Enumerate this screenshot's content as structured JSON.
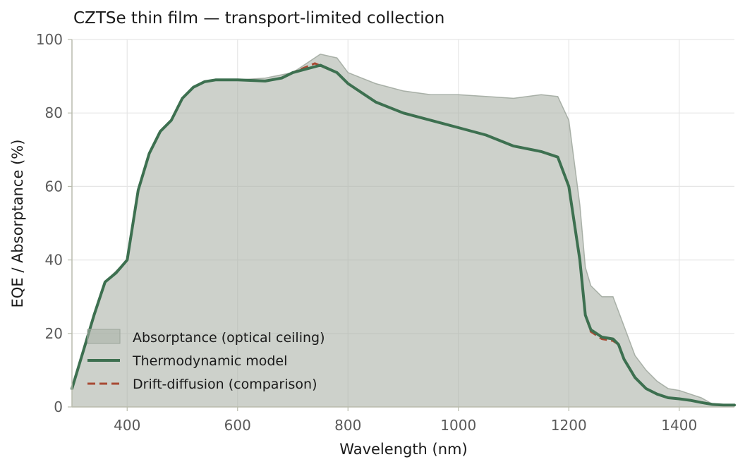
{
  "chart_data": {
    "type": "line",
    "title": "CZTSe thin film — transport-limited collection",
    "xlabel": "Wavelength (nm)",
    "ylabel": "EQE / Absorptance (%)",
    "xlim": [
      300,
      1500
    ],
    "ylim": [
      0,
      100
    ],
    "xticks": [
      400,
      600,
      800,
      1000,
      1200,
      1400
    ],
    "yticks": [
      0,
      20,
      40,
      60,
      80,
      100
    ],
    "grid": true,
    "legend_position": "lower-left",
    "series": [
      {
        "name": "Absorptance (optical ceiling)",
        "style": "area",
        "color": "#a8b0a6",
        "x": [
          300,
          320,
          340,
          360,
          380,
          400,
          420,
          440,
          460,
          480,
          500,
          520,
          540,
          560,
          580,
          600,
          650,
          700,
          750,
          780,
          800,
          850,
          900,
          950,
          1000,
          1050,
          1100,
          1150,
          1180,
          1200,
          1220,
          1230,
          1240,
          1260,
          1280,
          1300,
          1320,
          1340,
          1360,
          1380,
          1400,
          1420,
          1440,
          1460,
          1480,
          1500
        ],
        "values": [
          5,
          15,
          25,
          34,
          37,
          40,
          59,
          69,
          75,
          78,
          84,
          87,
          88.5,
          89,
          89,
          89,
          89.5,
          91,
          96,
          95,
          91,
          88,
          86,
          85,
          85,
          84.5,
          84,
          85,
          84.5,
          78,
          55,
          38,
          33,
          30,
          30,
          22,
          14,
          10,
          7,
          5,
          4.5,
          3.5,
          2.5,
          0.8,
          0.5,
          0.5
        ]
      },
      {
        "name": "Thermodynamic model",
        "style": "line",
        "color": "#3d7050",
        "x": [
          300,
          320,
          340,
          360,
          380,
          400,
          420,
          440,
          460,
          480,
          500,
          520,
          540,
          560,
          580,
          600,
          650,
          680,
          700,
          750,
          780,
          800,
          850,
          900,
          950,
          1000,
          1050,
          1100,
          1150,
          1180,
          1200,
          1220,
          1230,
          1240,
          1260,
          1280,
          1290,
          1300,
          1320,
          1340,
          1360,
          1380,
          1400,
          1420,
          1440,
          1460,
          1480,
          1500
        ],
        "values": [
          5,
          15,
          25,
          34,
          36.5,
          40,
          59,
          69,
          75,
          78,
          84,
          87,
          88.5,
          89,
          89,
          89,
          88.7,
          89.5,
          91,
          93,
          91,
          88,
          83,
          80,
          78,
          76,
          74,
          71,
          69.5,
          68,
          60,
          40,
          25,
          21,
          19,
          18.5,
          17,
          13,
          8,
          5,
          3.5,
          2.5,
          2.2,
          1.8,
          1.2,
          0.7,
          0.5,
          0.5
        ]
      },
      {
        "name": "Drift-diffusion (comparison)",
        "style": "dashed",
        "color": "#a84a33",
        "x": [
          300,
          320,
          340,
          360,
          380,
          400,
          420,
          440,
          460,
          480,
          500,
          520,
          540,
          560,
          580,
          600,
          650,
          680,
          700,
          740,
          780,
          800,
          850,
          900,
          950,
          1000,
          1050,
          1100,
          1150,
          1180,
          1200,
          1220,
          1230,
          1240,
          1260,
          1280,
          1290,
          1300,
          1320,
          1340,
          1360,
          1380,
          1400,
          1420,
          1440,
          1460,
          1480,
          1500
        ],
        "values": [
          5,
          15,
          25,
          34,
          36.5,
          40,
          59,
          69,
          75,
          78,
          84,
          87,
          88.5,
          89,
          89,
          89,
          88.7,
          89.5,
          91,
          93.5,
          91,
          88,
          83,
          80,
          78,
          76,
          74,
          71,
          69.5,
          68,
          60,
          40,
          25,
          20.5,
          18.5,
          18,
          17,
          13,
          8,
          5,
          3.5,
          2.5,
          2.2,
          1.8,
          1.2,
          0.7,
          0.5,
          0.5
        ]
      }
    ]
  }
}
